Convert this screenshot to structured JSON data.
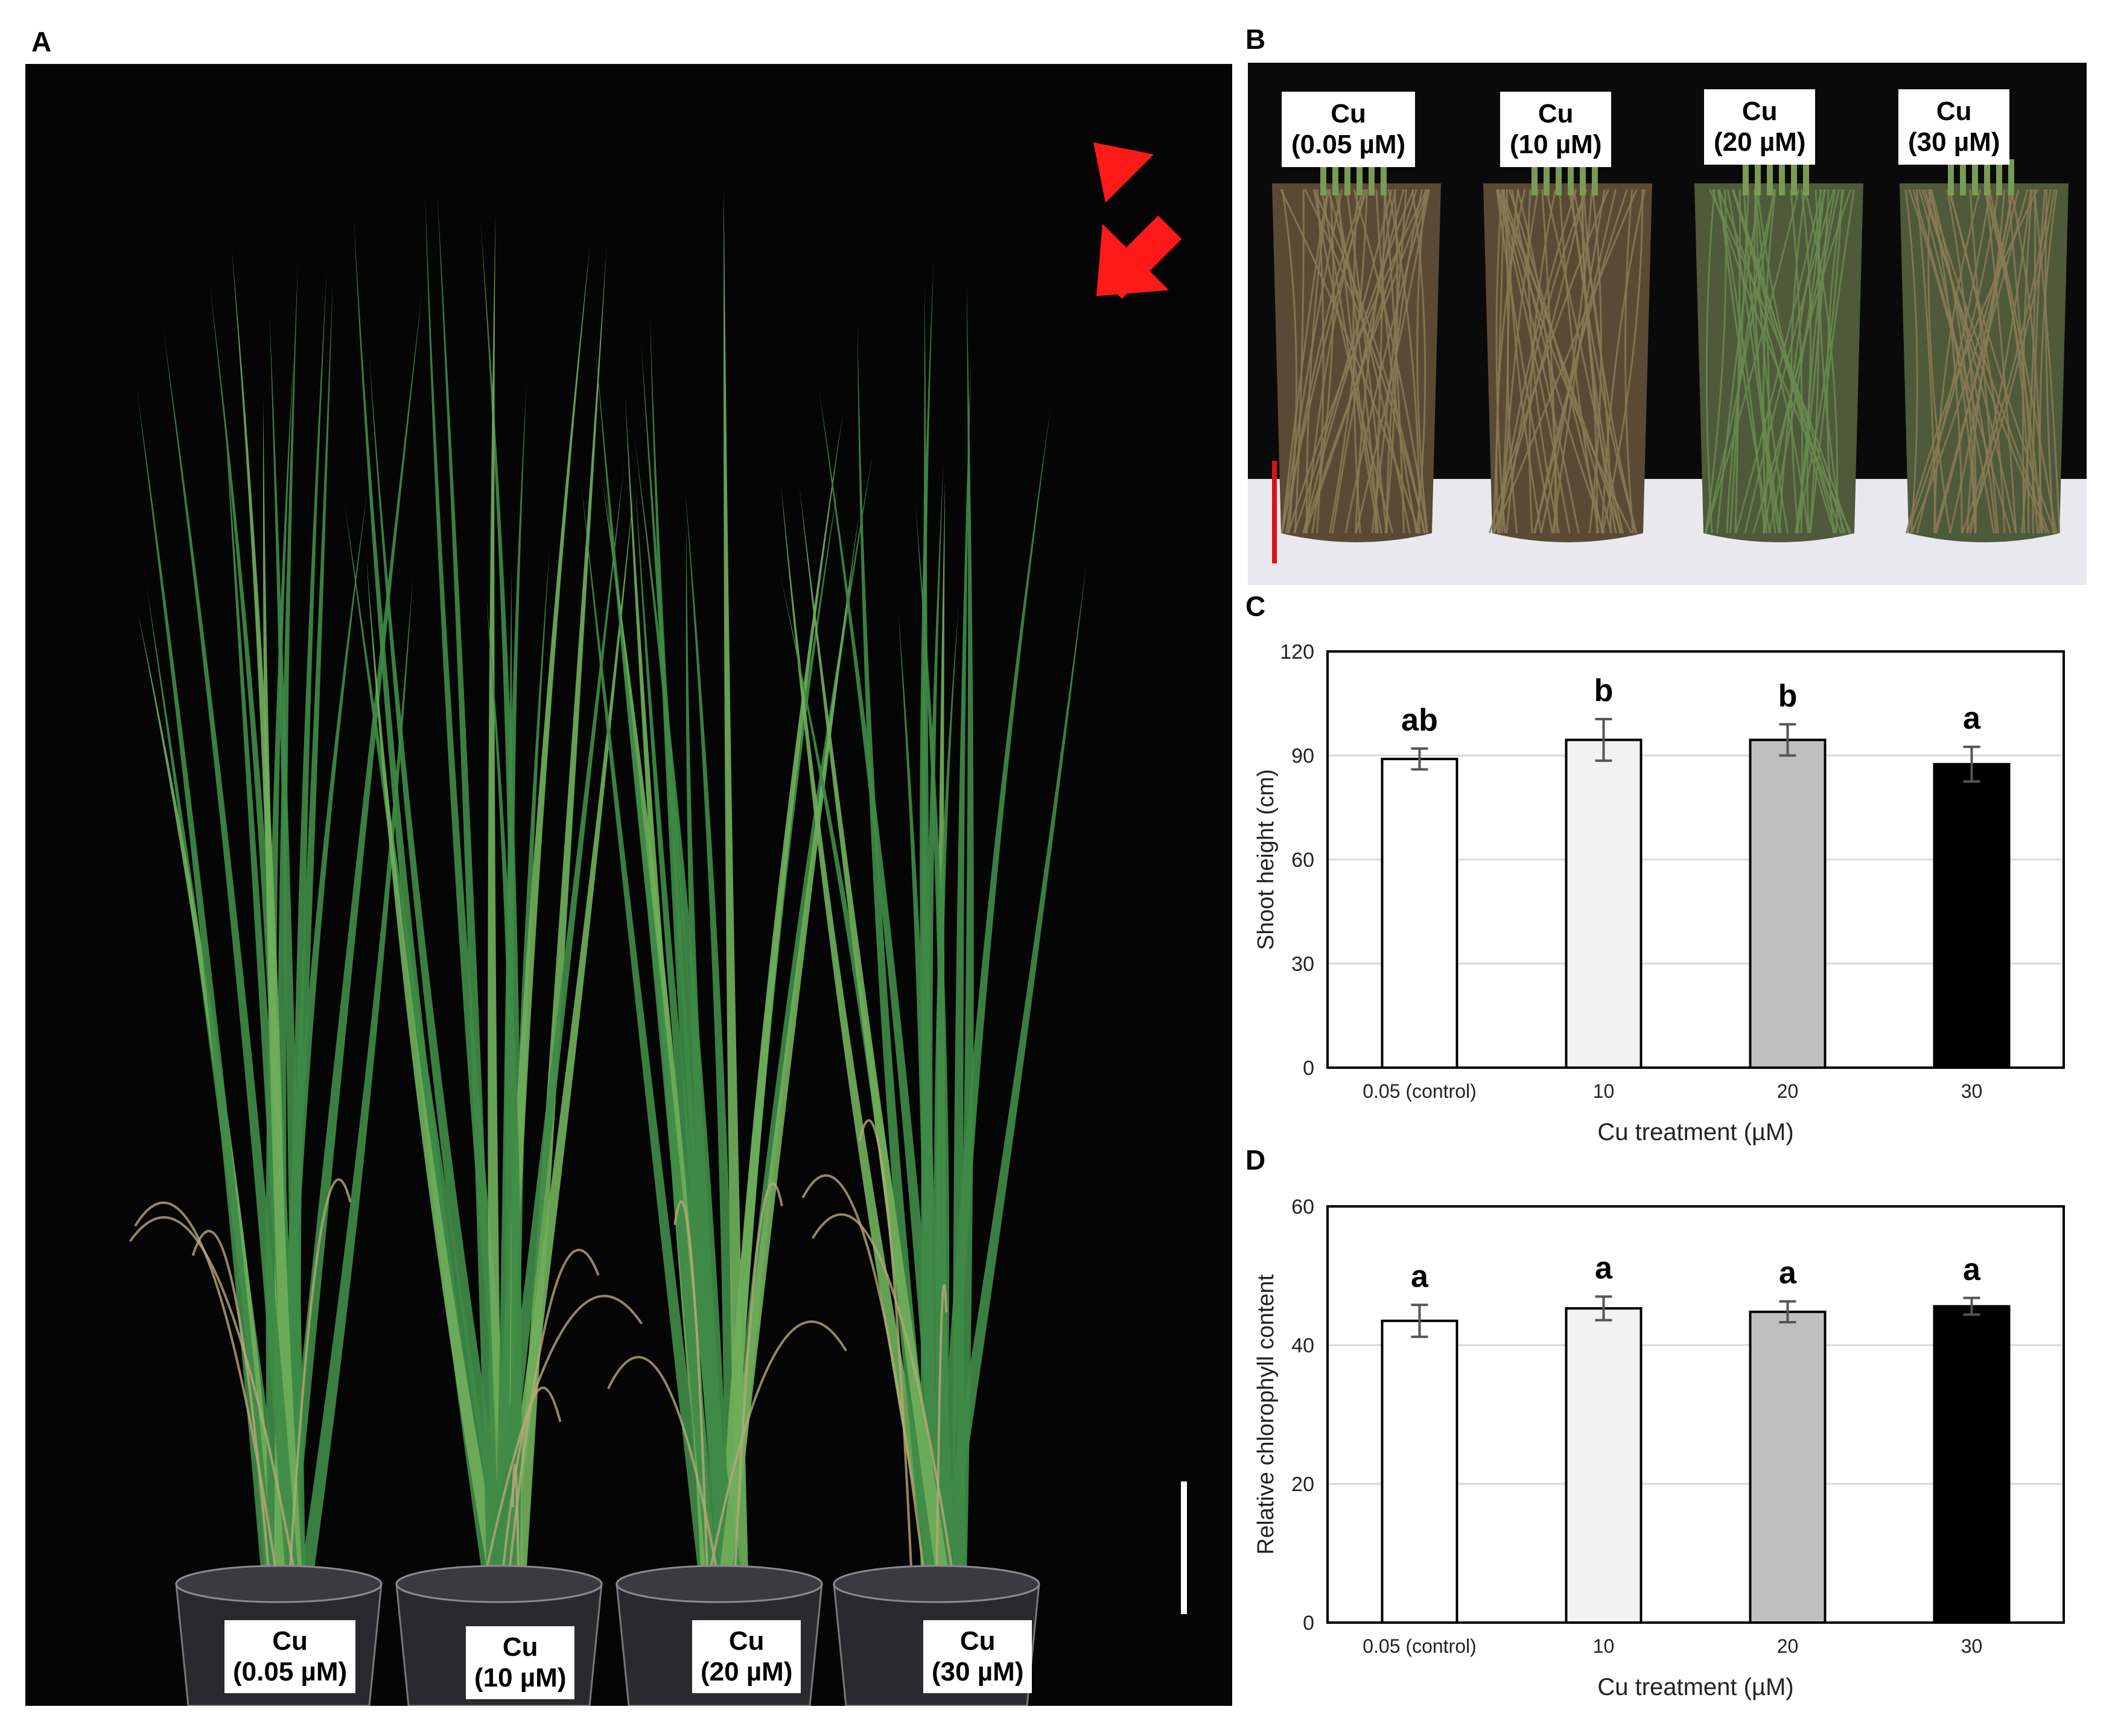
{
  "panels": {
    "a": {
      "letter": "A"
    },
    "b": {
      "letter": "B"
    },
    "c": {
      "letter": "C"
    },
    "d": {
      "letter": "D"
    }
  },
  "photo_a": {
    "labels": [
      {
        "line1": "Cu",
        "line2": "(0.05 µM)"
      },
      {
        "line1": "Cu",
        "line2": "(10 µM)"
      },
      {
        "line1": "Cu",
        "line2": "(20 µM)"
      },
      {
        "line1": "Cu",
        "line2": "(30 µM)"
      }
    ],
    "colors": {
      "background": "#050505",
      "leaf": "#3f8a46",
      "leaf_light": "#6fae5a",
      "straw": "#b7a878",
      "arrow": "#ff1a1a",
      "scale_bar": "#ffffff"
    }
  },
  "photo_b": {
    "labels": [
      {
        "line1": "Cu",
        "line2": "(0.05 µM)"
      },
      {
        "line1": "Cu",
        "line2": "(10 µM)"
      },
      {
        "line1": "Cu",
        "line2": "(20 µM)"
      },
      {
        "line1": "Cu",
        "line2": "(30 µM)"
      }
    ],
    "colors": {
      "background": "#0a0a0a",
      "root": "#8a7a55",
      "soil": "#5a4a35",
      "table": "#e8e8ee",
      "scale_bar": "#e01010"
    }
  },
  "chart_data": [
    {
      "type": "bar",
      "categories": [
        "0.05 (control)",
        "10",
        "20",
        "30"
      ],
      "values": [
        89,
        94.5,
        94.5,
        87.5
      ],
      "errors": [
        3,
        6,
        4.5,
        5
      ],
      "significance": [
        "ab",
        "b",
        "b",
        "a"
      ],
      "bar_colors": [
        "#ffffff",
        "#f2f2f2",
        "#bfbfbf",
        "#000000"
      ],
      "xlabel": "Cu treatment (µM)",
      "ylabel": "Shoot height (cm)",
      "ylim": [
        0,
        120
      ],
      "yticks": [
        "0",
        "30",
        "60",
        "90",
        "120"
      ],
      "grid": true
    },
    {
      "type": "bar",
      "categories": [
        "0.05 (control)",
        "10",
        "20",
        "30"
      ],
      "values": [
        43.5,
        45.3,
        44.8,
        45.6
      ],
      "errors": [
        2.3,
        1.7,
        1.5,
        1.2
      ],
      "significance": [
        "a",
        "a",
        "a",
        "a"
      ],
      "bar_colors": [
        "#ffffff",
        "#f2f2f2",
        "#bfbfbf",
        "#000000"
      ],
      "xlabel": "Cu treatment (µM)",
      "ylabel": "Relative chlorophyll content",
      "ylim": [
        0,
        60
      ],
      "yticks": [
        "0",
        "20",
        "40",
        "60"
      ],
      "grid": true
    }
  ]
}
